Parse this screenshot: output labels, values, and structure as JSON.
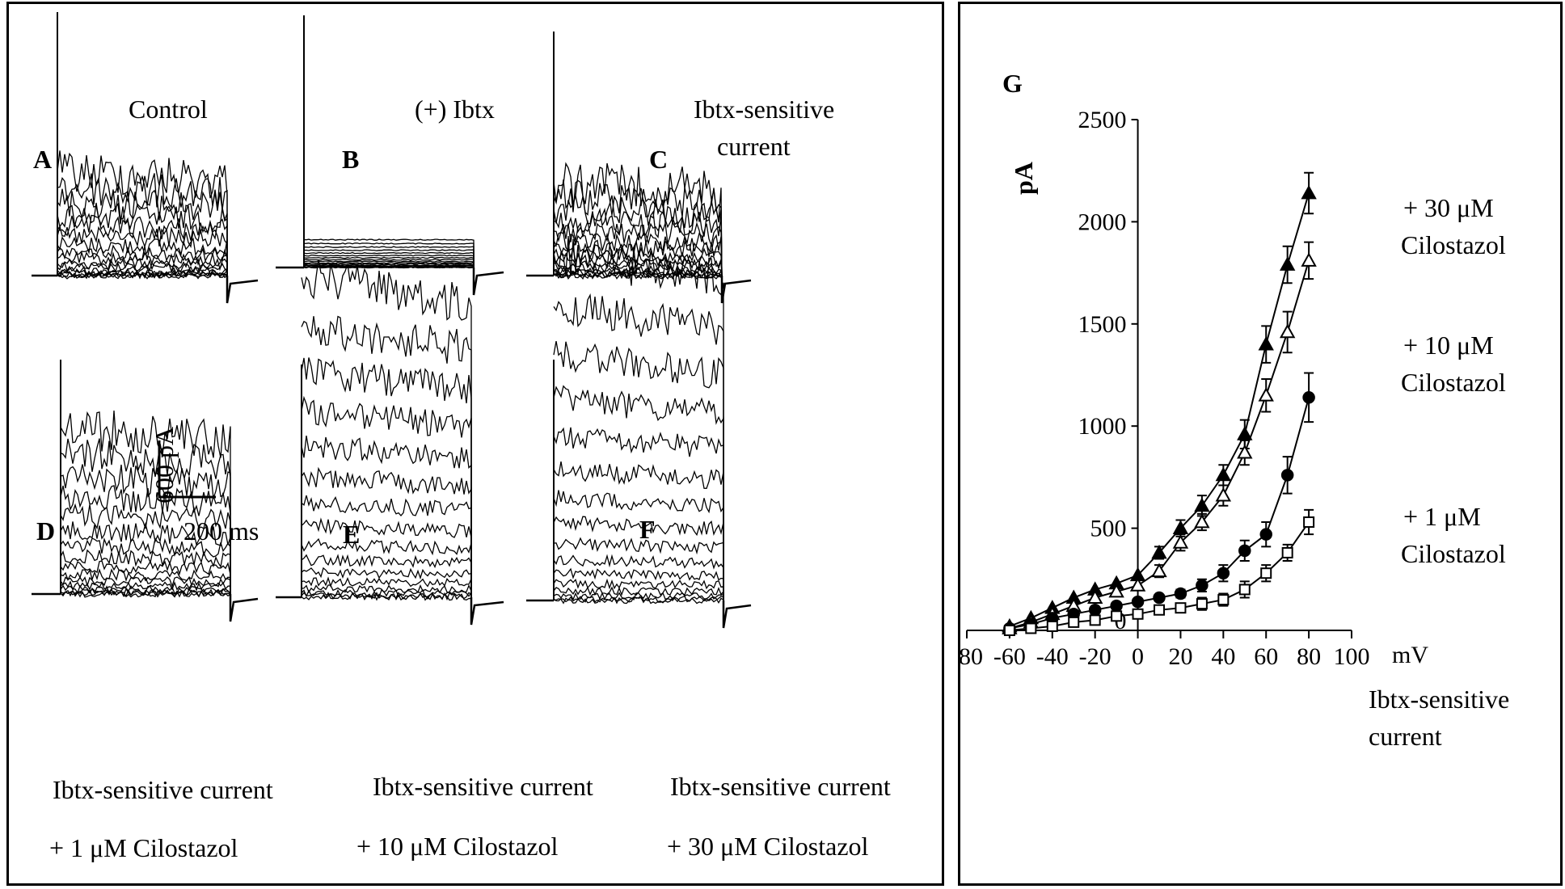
{
  "panels": {
    "A": {
      "letter": "A",
      "label": "Control"
    },
    "B": {
      "letter": "B",
      "label": "(+) Ibtx"
    },
    "C": {
      "letter": "C",
      "label_line1": "Ibtx-sensitive",
      "label_line2": "current"
    },
    "D": {
      "letter": "D",
      "label_line1": "Ibtx-sensitive current",
      "label_line2": "+  1 μM Cilostazol"
    },
    "E": {
      "letter": "E",
      "label_line1": "Ibtx-sensitive current",
      "label_line2": "+ 10 μM Cilostazol"
    },
    "F": {
      "letter": "F",
      "label_line1": "Ibtx-sensitive current",
      "label_line2": "+  30 μM Cilostazol"
    }
  },
  "scale_bar": {
    "vertical": "600 pA",
    "horizontal": "200 ms"
  },
  "trace_relative_amplitudes": {
    "A": 0.3,
    "B": 0.08,
    "C": 0.27,
    "D": 0.48,
    "E": 0.92,
    "F": 1.0
  },
  "chart_data": {
    "type": "scatter",
    "panel_letter": "G",
    "xlabel": "mV",
    "ylabel": "pA",
    "xlim": [
      -80,
      100
    ],
    "ylim": [
      0,
      2500
    ],
    "xticks": [
      -80,
      -60,
      -40,
      -20,
      0,
      20,
      40,
      60,
      80,
      100
    ],
    "yticks": [
      500,
      1000,
      1500,
      2000,
      2500
    ],
    "x": [
      -60,
      -50,
      -40,
      -30,
      -20,
      -10,
      0,
      10,
      20,
      30,
      40,
      50,
      60,
      70,
      80
    ],
    "series": [
      {
        "name": "+ 30 μM Cilostazol",
        "label_line1": "+ 30 μM",
        "label_line2": "Cilostazol",
        "marker": "filled-triangle",
        "values": [
          20,
          60,
          110,
          160,
          200,
          230,
          270,
          380,
          500,
          610,
          760,
          960,
          1400,
          1790,
          2140
        ],
        "errors": [
          0,
          0,
          0,
          0,
          0,
          0,
          0,
          30,
          40,
          50,
          50,
          70,
          90,
          90,
          100
        ]
      },
      {
        "name": "+ 10 μM Cilostazol",
        "label_line1": "+ 10 μM",
        "label_line2": "Cilostazol",
        "marker": "open-triangle",
        "values": [
          10,
          40,
          80,
          120,
          160,
          190,
          220,
          290,
          430,
          530,
          660,
          870,
          1150,
          1460,
          1810
        ],
        "errors": [
          0,
          0,
          0,
          0,
          0,
          0,
          0,
          30,
          40,
          40,
          50,
          60,
          80,
          100,
          90
        ]
      },
      {
        "name": "+ 1 μM Cilostazol",
        "label_line1": "+ 1 μM",
        "label_line2": "Cilostazol",
        "marker": "filled-circle",
        "values": [
          10,
          30,
          60,
          80,
          100,
          120,
          140,
          160,
          180,
          220,
          280,
          390,
          470,
          760,
          1140
        ],
        "errors": [
          0,
          0,
          0,
          0,
          0,
          0,
          0,
          0,
          20,
          30,
          40,
          50,
          60,
          90,
          120
        ]
      },
      {
        "name": "Ibtx-sensitive current",
        "label_line1": "Ibtx-sensitive",
        "label_line2": "current",
        "marker": "open-square",
        "values": [
          0,
          10,
          20,
          40,
          50,
          70,
          80,
          100,
          110,
          130,
          150,
          200,
          280,
          380,
          530
        ],
        "errors": [
          0,
          0,
          0,
          0,
          0,
          0,
          0,
          20,
          20,
          30,
          30,
          40,
          40,
          40,
          60
        ]
      }
    ]
  }
}
